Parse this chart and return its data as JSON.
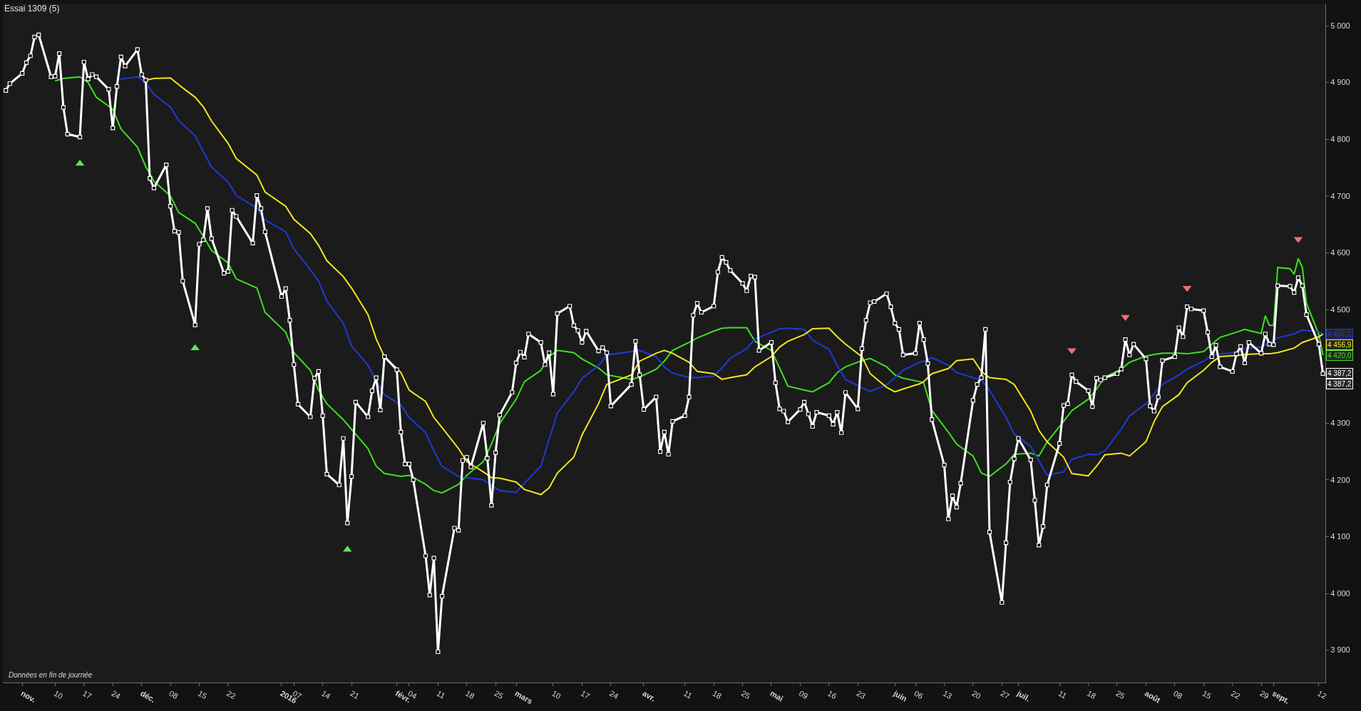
{
  "chart_data": {
    "type": "line",
    "title": "Essai 1309 (5)",
    "x": [
      "2015-10-29",
      "2015-10-30",
      "2015-11-02",
      "2015-11-03",
      "2015-11-04",
      "2015-11-05",
      "2015-11-06",
      "2015-11-09",
      "2015-11-10",
      "2015-11-11",
      "2015-11-12",
      "2015-11-13",
      "2015-11-16",
      "2015-11-17",
      "2015-11-18",
      "2015-11-19",
      "2015-11-20",
      "2015-11-23",
      "2015-11-24",
      "2015-11-25",
      "2015-11-26",
      "2015-11-27",
      "2015-11-30",
      "2015-12-01",
      "2015-12-02",
      "2015-12-03",
      "2015-12-04",
      "2015-12-07",
      "2015-12-08",
      "2015-12-09",
      "2015-12-10",
      "2015-12-11",
      "2015-12-14",
      "2015-12-15",
      "2015-12-16",
      "2015-12-17",
      "2015-12-18",
      "2015-12-21",
      "2015-12-22",
      "2015-12-23",
      "2015-12-24",
      "2015-12-28",
      "2015-12-29",
      "2015-12-30",
      "2015-12-31",
      "2016-01-04",
      "2016-01-05",
      "2016-01-06",
      "2016-01-07",
      "2016-01-08",
      "2016-01-11",
      "2016-01-12",
      "2016-01-13",
      "2016-01-14",
      "2016-01-15",
      "2016-01-18",
      "2016-01-19",
      "2016-01-20",
      "2016-01-21",
      "2016-01-22",
      "2016-01-25",
      "2016-01-26",
      "2016-01-27",
      "2016-01-28",
      "2016-01-29",
      "2016-02-01",
      "2016-02-02",
      "2016-02-03",
      "2016-02-04",
      "2016-02-05",
      "2016-02-08",
      "2016-02-09",
      "2016-02-10",
      "2016-02-11",
      "2016-02-12",
      "2016-02-15",
      "2016-02-16",
      "2016-02-17",
      "2016-02-18",
      "2016-02-19",
      "2016-02-22",
      "2016-02-23",
      "2016-02-24",
      "2016-02-25",
      "2016-02-26",
      "2016-02-29",
      "2016-03-01",
      "2016-03-02",
      "2016-03-03",
      "2016-03-04",
      "2016-03-07",
      "2016-03-08",
      "2016-03-09",
      "2016-03-10",
      "2016-03-11",
      "2016-03-14",
      "2016-03-15",
      "2016-03-16",
      "2016-03-17",
      "2016-03-18",
      "2016-03-21",
      "2016-03-22",
      "2016-03-23",
      "2016-03-24",
      "2016-03-29",
      "2016-03-30",
      "2016-03-31",
      "2016-04-01",
      "2016-04-04",
      "2016-04-05",
      "2016-04-06",
      "2016-04-07",
      "2016-04-08",
      "2016-04-11",
      "2016-04-12",
      "2016-04-13",
      "2016-04-14",
      "2016-04-15",
      "2016-04-18",
      "2016-04-19",
      "2016-04-20",
      "2016-04-21",
      "2016-04-22",
      "2016-04-25",
      "2016-04-26",
      "2016-04-27",
      "2016-04-28",
      "2016-04-29",
      "2016-05-02",
      "2016-05-03",
      "2016-05-04",
      "2016-05-05",
      "2016-05-06",
      "2016-05-09",
      "2016-05-10",
      "2016-05-11",
      "2016-05-12",
      "2016-05-13",
      "2016-05-16",
      "2016-05-17",
      "2016-05-18",
      "2016-05-19",
      "2016-05-20",
      "2016-05-23",
      "2016-05-24",
      "2016-05-25",
      "2016-05-26",
      "2016-05-27",
      "2016-05-30",
      "2016-05-31",
      "2016-06-01",
      "2016-06-02",
      "2016-06-03",
      "2016-06-06",
      "2016-06-07",
      "2016-06-08",
      "2016-06-09",
      "2016-06-10",
      "2016-06-13",
      "2016-06-14",
      "2016-06-15",
      "2016-06-16",
      "2016-06-17",
      "2016-06-20",
      "2016-06-21",
      "2016-06-22",
      "2016-06-23",
      "2016-06-24",
      "2016-06-27",
      "2016-06-28",
      "2016-06-29",
      "2016-06-30",
      "2016-07-01",
      "2016-07-04",
      "2016-07-05",
      "2016-07-06",
      "2016-07-07",
      "2016-07-08",
      "2016-07-11",
      "2016-07-12",
      "2016-07-13",
      "2016-07-14",
      "2016-07-15",
      "2016-07-18",
      "2016-07-19",
      "2016-07-20",
      "2016-07-21",
      "2016-07-22",
      "2016-07-25",
      "2016-07-26",
      "2016-07-27",
      "2016-07-28",
      "2016-07-29",
      "2016-08-01",
      "2016-08-02",
      "2016-08-03",
      "2016-08-04",
      "2016-08-05",
      "2016-08-08",
      "2016-08-09",
      "2016-08-10",
      "2016-08-11",
      "2016-08-12",
      "2016-08-15",
      "2016-08-16",
      "2016-08-17",
      "2016-08-18",
      "2016-08-19",
      "2016-08-22",
      "2016-08-23",
      "2016-08-24",
      "2016-08-25",
      "2016-08-26",
      "2016-08-29",
      "2016-08-30",
      "2016-08-31",
      "2016-09-01",
      "2016-09-02",
      "2016-09-05",
      "2016-09-06",
      "2016-09-07",
      "2016-09-08",
      "2016-09-09",
      "2016-09-12",
      "2016-09-13"
    ],
    "xlim": [
      "2015-10-28T07:00",
      "2016-09-13T14:00"
    ],
    "xticks": [
      {
        "value": "2015-11-02",
        "label": "nov."
      },
      {
        "value": "2015-11-10",
        "label": "10"
      },
      {
        "value": "2015-11-17",
        "label": "17"
      },
      {
        "value": "2015-11-24",
        "label": "24"
      },
      {
        "value": "2015-12-01",
        "label": "déc."
      },
      {
        "value": "2015-12-08",
        "label": "08"
      },
      {
        "value": "2015-12-15",
        "label": "15"
      },
      {
        "value": "2015-12-22",
        "label": "22"
      },
      {
        "value": "2016-01-04",
        "label": "2016"
      },
      {
        "value": "2016-01-07",
        "label": "07"
      },
      {
        "value": "2016-01-14",
        "label": "14"
      },
      {
        "value": "2016-01-21",
        "label": "21"
      },
      {
        "value": "2016-02-01",
        "label": "févr."
      },
      {
        "value": "2016-02-04",
        "label": "04"
      },
      {
        "value": "2016-02-11",
        "label": "11"
      },
      {
        "value": "2016-02-18",
        "label": "18"
      },
      {
        "value": "2016-02-25",
        "label": "25"
      },
      {
        "value": "2016-03-01",
        "label": "mars"
      },
      {
        "value": "2016-03-10",
        "label": "10"
      },
      {
        "value": "2016-03-17",
        "label": "17"
      },
      {
        "value": "2016-03-24",
        "label": "24"
      },
      {
        "value": "2016-04-01",
        "label": "avr."
      },
      {
        "value": "2016-04-11",
        "label": "11"
      },
      {
        "value": "2016-04-18",
        "label": "18"
      },
      {
        "value": "2016-04-25",
        "label": "25"
      },
      {
        "value": "2016-05-02",
        "label": "mai"
      },
      {
        "value": "2016-05-09",
        "label": "09"
      },
      {
        "value": "2016-05-16",
        "label": "16"
      },
      {
        "value": "2016-05-23",
        "label": "23"
      },
      {
        "value": "2016-06-01",
        "label": "juin"
      },
      {
        "value": "2016-06-06",
        "label": "06"
      },
      {
        "value": "2016-06-13",
        "label": "13"
      },
      {
        "value": "2016-06-20",
        "label": "20"
      },
      {
        "value": "2016-06-27",
        "label": "27"
      },
      {
        "value": "2016-07-01",
        "label": "juil."
      },
      {
        "value": "2016-07-11",
        "label": "11"
      },
      {
        "value": "2016-07-18",
        "label": "18"
      },
      {
        "value": "2016-07-25",
        "label": "25"
      },
      {
        "value": "2016-08-01",
        "label": "août"
      },
      {
        "value": "2016-08-08",
        "label": "08"
      },
      {
        "value": "2016-08-15",
        "label": "15"
      },
      {
        "value": "2016-08-22",
        "label": "22"
      },
      {
        "value": "2016-08-29",
        "label": "29"
      },
      {
        "value": "2016-09-01",
        "label": "sept."
      },
      {
        "value": "2016-09-12",
        "label": "12"
      }
    ],
    "ylim": [
      3843,
      5039
    ],
    "yticks": [
      {
        "value": 3900,
        "label": "3 900"
      },
      {
        "value": 4000,
        "label": "4 000"
      },
      {
        "value": 4100,
        "label": "4 100"
      },
      {
        "value": 4200,
        "label": "4 200"
      },
      {
        "value": 4300,
        "label": "4 300"
      },
      {
        "value": 4500,
        "label": "4 500"
      },
      {
        "value": 4600,
        "label": "4 600"
      },
      {
        "value": 4700,
        "label": "4 700"
      },
      {
        "value": 4800,
        "label": "4 800"
      },
      {
        "value": 4900,
        "label": "4 900"
      },
      {
        "value": 5000,
        "label": "5 000"
      }
    ],
    "series": [
      {
        "color": "#3de021",
        "x": [
          "2015-11-10",
          "2015-11-12",
          "2015-11-16",
          "2015-11-18",
          "2015-11-20",
          "2015-11-24",
          "2015-11-26",
          "2015-11-30",
          "2015-12-02",
          "2015-12-04",
          "2015-12-08",
          "2015-12-10",
          "2015-12-14",
          "2015-12-16",
          "2015-12-18",
          "2015-12-22",
          "2015-12-24",
          "2015-12-29",
          "2015-12-31",
          "2016-01-05",
          "2016-01-07",
          "2016-01-11",
          "2016-01-13",
          "2016-01-15",
          "2016-01-19",
          "2016-01-21",
          "2016-01-25",
          "2016-01-27",
          "2016-01-29",
          "2016-02-02",
          "2016-02-04",
          "2016-02-08",
          "2016-02-10",
          "2016-02-12",
          "2016-02-16",
          "2016-02-18",
          "2016-02-22",
          "2016-02-24",
          "2016-02-26",
          "2016-03-01",
          "2016-03-03",
          "2016-03-07",
          "2016-03-09",
          "2016-03-11",
          "2016-03-15",
          "2016-03-17",
          "2016-03-21",
          "2016-03-23",
          "2016-03-29",
          "2016-03-31",
          "2016-04-04",
          "2016-04-06",
          "2016-04-08",
          "2016-04-12",
          "2016-04-14",
          "2016-04-18",
          "2016-04-20",
          "2016-04-22",
          "2016-04-26",
          "2016-04-28",
          "2016-05-02",
          "2016-05-04",
          "2016-05-06",
          "2016-05-10",
          "2016-05-12",
          "2016-05-16",
          "2016-05-18",
          "2016-05-20",
          "2016-05-24",
          "2016-05-26",
          "2016-05-30",
          "2016-06-01",
          "2016-06-03",
          "2016-06-07",
          "2016-06-08",
          "2016-06-10",
          "2016-06-14",
          "2016-06-16",
          "2016-06-20",
          "2016-06-22",
          "2016-06-24",
          "2016-06-28",
          "2016-06-30",
          "2016-07-04",
          "2016-07-06",
          "2016-07-08",
          "2016-07-12",
          "2016-07-14",
          "2016-07-18",
          "2016-07-20",
          "2016-07-22",
          "2016-07-26",
          "2016-07-28",
          "2016-08-01",
          "2016-08-03",
          "2016-08-05",
          "2016-08-09",
          "2016-08-11",
          "2016-08-15",
          "2016-08-17",
          "2016-08-19",
          "2016-08-23",
          "2016-08-25",
          "2016-08-26",
          "2016-08-29",
          "2016-08-30",
          "2016-08-31",
          "2016-09-01",
          "2016-09-02",
          "2016-09-05",
          "2016-09-06",
          "2016-09-07",
          "2016-09-08",
          "2016-09-09",
          "2016-09-12",
          "2016-09-13"
        ],
        "values": [
          4903,
          4907,
          4910,
          4900,
          4874,
          4853,
          4818,
          4786,
          4752,
          4726,
          4700,
          4671,
          4652,
          4629,
          4604,
          4582,
          4554,
          4538,
          4495,
          4460,
          4424,
          4393,
          4358,
          4334,
          4306,
          4289,
          4255,
          4224,
          4211,
          4206,
          4208,
          4192,
          4181,
          4177,
          4192,
          4208,
          4232,
          4263,
          4299,
          4342,
          4373,
          4393,
          4417,
          4428,
          4424,
          4413,
          4397,
          4385,
          4377,
          4381,
          4395,
          4409,
          4428,
          4442,
          4450,
          4462,
          4467,
          4468,
          4468,
          4444,
          4428,
          4397,
          4365,
          4358,
          4355,
          4371,
          4389,
          4399,
          4410,
          4414,
          4399,
          4385,
          4379,
          4373,
          4371,
          4322,
          4284,
          4263,
          4242,
          4212,
          4206,
          4228,
          4245,
          4247,
          4242,
          4267,
          4303,
          4322,
          4342,
          4360,
          4381,
          4395,
          4407,
          4418,
          4421,
          4423,
          4423,
          4422,
          4426,
          4439,
          4451,
          4460,
          4465,
          4463,
          4458,
          4489,
          4472,
          4472,
          4574,
          4572,
          4562,
          4590,
          4574,
          4511,
          4456,
          4420.0
        ]
      },
      {
        "color": "#1e3ad8",
        "x": [
          "2015-11-25",
          "2015-11-26",
          "2015-11-30",
          "2015-12-02",
          "2015-12-04",
          "2015-12-08",
          "2015-12-10",
          "2015-12-14",
          "2015-12-16",
          "2015-12-18",
          "2015-12-22",
          "2015-12-24",
          "2015-12-29",
          "2015-12-31",
          "2016-01-05",
          "2016-01-07",
          "2016-01-11",
          "2016-01-13",
          "2016-01-15",
          "2016-01-19",
          "2016-01-21",
          "2016-01-25",
          "2016-01-27",
          "2016-01-29",
          "2016-02-02",
          "2016-02-04",
          "2016-02-08",
          "2016-02-10",
          "2016-02-12",
          "2016-02-16",
          "2016-02-18",
          "2016-02-22",
          "2016-02-24",
          "2016-02-26",
          "2016-03-01",
          "2016-03-03",
          "2016-03-07",
          "2016-03-09",
          "2016-03-11",
          "2016-03-15",
          "2016-03-17",
          "2016-03-21",
          "2016-03-23",
          "2016-03-29",
          "2016-03-31",
          "2016-04-04",
          "2016-04-06",
          "2016-04-08",
          "2016-04-12",
          "2016-04-14",
          "2016-04-18",
          "2016-04-20",
          "2016-04-22",
          "2016-04-26",
          "2016-04-28",
          "2016-05-02",
          "2016-05-04",
          "2016-05-06",
          "2016-05-10",
          "2016-05-12",
          "2016-05-16",
          "2016-05-18",
          "2016-05-20",
          "2016-05-24",
          "2016-05-26",
          "2016-05-30",
          "2016-06-01",
          "2016-06-03",
          "2016-06-07",
          "2016-06-08",
          "2016-06-10",
          "2016-06-14",
          "2016-06-16",
          "2016-06-20",
          "2016-06-22",
          "2016-06-24",
          "2016-06-28",
          "2016-06-30",
          "2016-07-04",
          "2016-07-06",
          "2016-07-08",
          "2016-07-12",
          "2016-07-14",
          "2016-07-18",
          "2016-07-20",
          "2016-07-22",
          "2016-07-26",
          "2016-07-28",
          "2016-08-01",
          "2016-08-03",
          "2016-08-05",
          "2016-08-09",
          "2016-08-11",
          "2016-08-15",
          "2016-08-17",
          "2016-08-19",
          "2016-08-23",
          "2016-08-25",
          "2016-08-29",
          "2016-08-31",
          "2016-09-02",
          "2016-09-06",
          "2016-09-08",
          "2016-09-12",
          "2016-09-13"
        ],
        "values": [
          4905,
          4906,
          4910,
          4900,
          4879,
          4857,
          4833,
          4806,
          4778,
          4751,
          4725,
          4701,
          4679,
          4658,
          4637,
          4607,
          4570,
          4550,
          4515,
          4476,
          4436,
          4402,
          4373,
          4350,
          4332,
          4310,
          4283,
          4251,
          4224,
          4206,
          4204,
          4200,
          4190,
          4181,
          4178,
          4194,
          4224,
          4271,
          4318,
          4355,
          4379,
          4401,
          4420,
          4426,
          4428,
          4417,
          4399,
          4388,
          4380,
          4380,
          4383,
          4397,
          4414,
          4431,
          4448,
          4460,
          4466,
          4467,
          4465,
          4446,
          4430,
          4401,
          4377,
          4362,
          4356,
          4367,
          4380,
          4393,
          4407,
          4409,
          4415,
          4402,
          4389,
          4380,
          4376,
          4358,
          4310,
          4281,
          4259,
          4233,
          4208,
          4214,
          4236,
          4245,
          4244,
          4251,
          4289,
          4313,
          4334,
          4352,
          4368,
          4385,
          4395,
          4409,
          4419,
          4422,
          4424,
          4431,
          4434,
          4442,
          4450,
          4457,
          4464,
          4461,
          4457.1
        ]
      },
      {
        "color": "#f2e521",
        "x": [
          "2015-12-02",
          "2015-12-04",
          "2015-12-08",
          "2015-12-10",
          "2015-12-14",
          "2015-12-16",
          "2015-12-18",
          "2015-12-22",
          "2015-12-24",
          "2015-12-29",
          "2015-12-31",
          "2016-01-05",
          "2016-01-07",
          "2016-01-11",
          "2016-01-13",
          "2016-01-15",
          "2016-01-19",
          "2016-01-21",
          "2016-01-25",
          "2016-01-27",
          "2016-01-29",
          "2016-02-02",
          "2016-02-04",
          "2016-02-08",
          "2016-02-10",
          "2016-02-12",
          "2016-02-16",
          "2016-02-18",
          "2016-02-22",
          "2016-02-24",
          "2016-02-26",
          "2016-03-01",
          "2016-03-03",
          "2016-03-07",
          "2016-03-09",
          "2016-03-11",
          "2016-03-15",
          "2016-03-17",
          "2016-03-21",
          "2016-03-23",
          "2016-03-29",
          "2016-03-31",
          "2016-04-04",
          "2016-04-06",
          "2016-04-08",
          "2016-04-12",
          "2016-04-14",
          "2016-04-18",
          "2016-04-20",
          "2016-04-22",
          "2016-04-26",
          "2016-04-28",
          "2016-05-02",
          "2016-05-04",
          "2016-05-06",
          "2016-05-10",
          "2016-05-12",
          "2016-05-16",
          "2016-05-18",
          "2016-05-20",
          "2016-05-24",
          "2016-05-26",
          "2016-05-30",
          "2016-06-01",
          "2016-06-03",
          "2016-06-07",
          "2016-06-08",
          "2016-06-10",
          "2016-06-14",
          "2016-06-16",
          "2016-06-20",
          "2016-06-22",
          "2016-06-24",
          "2016-06-28",
          "2016-06-30",
          "2016-07-04",
          "2016-07-06",
          "2016-07-08",
          "2016-07-12",
          "2016-07-14",
          "2016-07-18",
          "2016-07-20",
          "2016-07-22",
          "2016-07-26",
          "2016-07-28",
          "2016-08-01",
          "2016-08-03",
          "2016-08-05",
          "2016-08-09",
          "2016-08-11",
          "2016-08-15",
          "2016-08-17",
          "2016-08-19",
          "2016-08-23",
          "2016-08-25",
          "2016-08-29",
          "2016-08-31",
          "2016-09-02",
          "2016-09-06",
          "2016-09-08",
          "2016-09-12",
          "2016-09-13"
        ],
        "values": [
          4904,
          4907,
          4908,
          4896,
          4874,
          4857,
          4832,
          4793,
          4766,
          4737,
          4707,
          4682,
          4659,
          4634,
          4613,
          4586,
          4558,
          4538,
          4491,
          4448,
          4417,
          4389,
          4358,
          4338,
          4310,
          4292,
          4255,
          4232,
          4214,
          4204,
          4203,
          4196,
          4183,
          4174,
          4186,
          4212,
          4240,
          4279,
          4334,
          4368,
          4385,
          4409,
          4423,
          4428,
          4423,
          4407,
          4391,
          4387,
          4377,
          4380,
          4385,
          4399,
          4417,
          4434,
          4444,
          4456,
          4466,
          4467,
          4452,
          4439,
          4417,
          4387,
          4363,
          4355,
          4360,
          4369,
          4373,
          4387,
          4396,
          4410,
          4413,
          4391,
          4380,
          4377,
          4368,
          4321,
          4287,
          4267,
          4240,
          4211,
          4207,
          4224,
          4244,
          4247,
          4242,
          4267,
          4303,
          4329,
          4350,
          4371,
          4393,
          4407,
          4417,
          4419,
          4421,
          4422,
          4422,
          4424,
          4432,
          4442,
          4452,
          4456.9
        ]
      },
      {
        "color": "#ffffff",
        "marker": "square",
        "values": [
          4886,
          4898,
          4916,
          4935,
          4947,
          4980,
          4984,
          4910,
          4911,
          4951,
          4856,
          4809,
          4804,
          4936,
          4906,
          4914,
          4910,
          4888,
          4820,
          4893,
          4945,
          4929,
          4958,
          4914,
          4904,
          4731,
          4714,
          4755,
          4682,
          4638,
          4636,
          4550,
          4473,
          4615,
          4623,
          4678,
          4625,
          4564,
          4567,
          4675,
          4664,
          4617,
          4701,
          4678,
          4637,
          4523,
          4537,
          4481,
          4403,
          4333,
          4311,
          4379,
          4391,
          4313,
          4210,
          4191,
          4273,
          4124,
          4206,
          4337,
          4311,
          4357,
          4380,
          4323,
          4417,
          4394,
          4284,
          4228,
          4228,
          4200,
          4066,
          3997,
          4062,
          3897,
          3995,
          4115,
          4111,
          4234,
          4240,
          4223,
          4300,
          4238,
          4155,
          4248,
          4314,
          4354,
          4406,
          4425,
          4416,
          4457,
          4442,
          4403,
          4424,
          4351,
          4493,
          4506,
          4472,
          4463,
          4442,
          4462,
          4427,
          4433,
          4424,
          4330,
          4368,
          4444,
          4385,
          4324,
          4346,
          4250,
          4284,
          4245,
          4303,
          4313,
          4346,
          4490,
          4511,
          4495,
          4506,
          4566,
          4592,
          4583,
          4569,
          4546,
          4533,
          4559,
          4557,
          4428,
          4442,
          4371,
          4325,
          4321,
          4302,
          4324,
          4337,
          4316,
          4294,
          4319,
          4313,
          4298,
          4319,
          4283,
          4354,
          4325,
          4431,
          4481,
          4512,
          4514,
          4528,
          4505,
          4476,
          4465,
          4420,
          4423,
          4476,
          4447,
          4405,
          4306,
          4226,
          4131,
          4172,
          4152,
          4194,
          4340,
          4368,
          4380,
          4465,
          4108,
          3984,
          4089,
          4196,
          4237,
          4273,
          4235,
          4164,
          4085,
          4118,
          4191,
          4264,
          4331,
          4334,
          4385,
          4373,
          4357,
          4329,
          4379,
          4376,
          4380,
          4387,
          4395,
          4447,
          4420,
          4439,
          4413,
          4330,
          4321,
          4346,
          4410,
          4417,
          4468,
          4452,
          4505,
          4501,
          4498,
          4460,
          4417,
          4437,
          4399,
          4391,
          4422,
          4435,
          4406,
          4442,
          4423,
          4457,
          4439,
          4438,
          4542,
          4541,
          4530,
          4556,
          4542,
          4491,
          4439,
          4387.2
        ]
      },
      {
        "type": "scatter",
        "color": "#5be65b",
        "marker": "triangle",
        "x": [
          "2015-11-16",
          "2015-12-14",
          "2016-01-20"
        ],
        "values": [
          4757,
          4432,
          4077
        ]
      },
      {
        "type": "scatter",
        "color": "#f07070",
        "marker": "triangle",
        "x": [
          "2016-07-14",
          "2016-07-27",
          "2016-08-11",
          "2016-09-07"
        ],
        "values": [
          4428,
          4487,
          4538,
          4624
        ]
      }
    ],
    "annotations": [
      "Données en fin de journée",
      {
        "text": "4 457,1",
        "x": "2016-09-13",
        "y": 4457.1
      },
      {
        "text": "4 456,9",
        "x": "2016-09-13",
        "y": 4456.9
      },
      {
        "text": "4 420,0",
        "x": "2016-09-13",
        "y": 4420.0
      },
      {
        "text": "4 387,2",
        "x": "2016-09-13",
        "y": 4387.2
      },
      {
        "text": "4 387,2",
        "x": "2016-09-13",
        "y": 4387.2
      }
    ]
  }
}
